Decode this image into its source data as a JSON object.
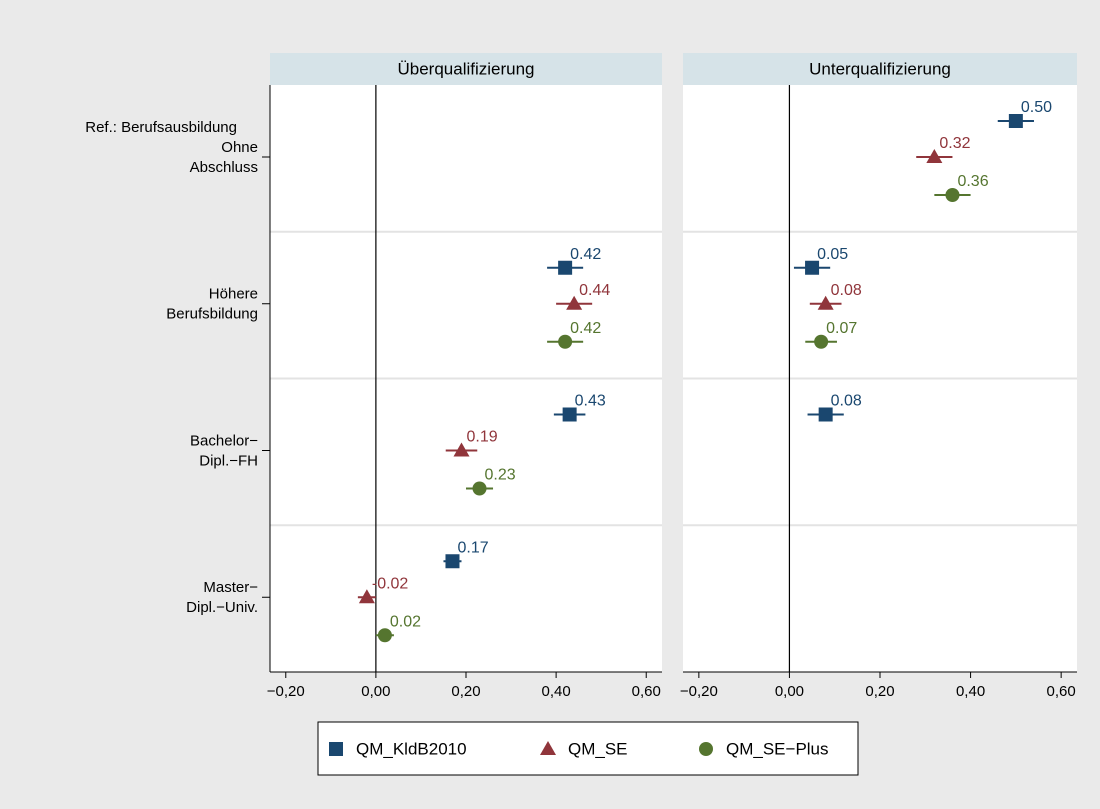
{
  "chart_data": {
    "type": "dot",
    "ref_label": "Ref.: Berufsausbildung",
    "categories": [
      [
        "Ohne",
        "Abschluss"
      ],
      [
        "Höhere",
        "Berufsbildung"
      ],
      [
        "Bachelor−",
        "Dipl.−FH"
      ],
      [
        "Master−",
        "Dipl.−Univ."
      ]
    ],
    "series": [
      {
        "name": "QM_KldB2010",
        "color": "#1a476f",
        "marker": "square"
      },
      {
        "name": "QM_SE",
        "color": "#90353b",
        "marker": "triangle"
      },
      {
        "name": "QM_SE−Plus",
        "color": "#55752f",
        "marker": "circle"
      }
    ],
    "xlim": [
      -0.235,
      0.635
    ],
    "xticks": [
      {
        "value": -0.2,
        "label": "−0,20"
      },
      {
        "value": 0,
        "label": "0,00"
      },
      {
        "value": 0.2,
        "label": "0,20"
      },
      {
        "value": 0.4,
        "label": "0,40"
      },
      {
        "value": 0.6,
        "label": "0,60"
      }
    ],
    "panels": [
      {
        "title": "Überqualifizierung",
        "series": [
          {
            "values": [
              null,
              0.42,
              0.43,
              0.17
            ],
            "value_labels": [
              null,
              "0.42",
              "0.43",
              "0.17"
            ],
            "errors": [
              null,
              0.04,
              0.035,
              0.02
            ]
          },
          {
            "values": [
              null,
              0.44,
              0.19,
              -0.02
            ],
            "value_labels": [
              null,
              "0.44",
              "0.19",
              "-0.02"
            ],
            "errors": [
              null,
              0.04,
              0.035,
              0.02
            ]
          },
          {
            "values": [
              null,
              0.42,
              0.23,
              0.02
            ],
            "value_labels": [
              null,
              "0.42",
              "0.23",
              "0.02"
            ],
            "errors": [
              null,
              0.04,
              0.03,
              0.02
            ]
          }
        ]
      },
      {
        "title": "Unterqualifizierung",
        "series": [
          {
            "values": [
              0.5,
              0.05,
              0.08,
              null
            ],
            "value_labels": [
              "0.50",
              "0.05",
              "0.08",
              null
            ],
            "errors": [
              0.04,
              0.04,
              0.04,
              null
            ]
          },
          {
            "values": [
              0.32,
              0.08,
              null,
              null
            ],
            "value_labels": [
              "0.32",
              "0.08",
              null,
              null
            ],
            "errors": [
              0.04,
              0.035,
              null,
              null
            ]
          },
          {
            "values": [
              0.36,
              0.07,
              null,
              null
            ],
            "value_labels": [
              "0.36",
              "0.07",
              null,
              null
            ],
            "errors": [
              0.04,
              0.035,
              null,
              null
            ]
          }
        ]
      }
    ]
  }
}
